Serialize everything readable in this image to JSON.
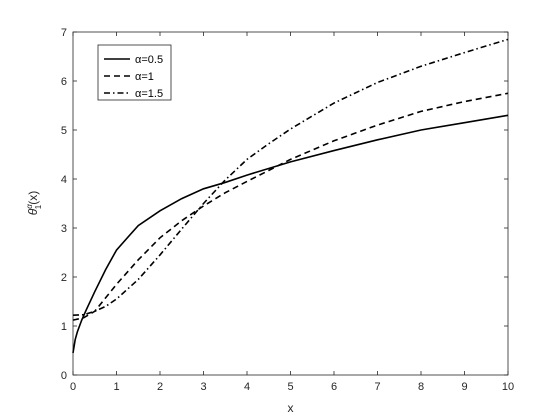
{
  "chart_data": {
    "type": "line",
    "xlabel": "x",
    "ylabel_parts": {
      "base": "θ",
      "superscript": "α",
      "subscript": "1",
      "suffix": "(x)"
    },
    "xlim": [
      0,
      10
    ],
    "ylim": [
      0,
      7
    ],
    "xticks": [
      "0",
      "1",
      "2",
      "3",
      "4",
      "5",
      "6",
      "7",
      "8",
      "9",
      "10"
    ],
    "yticks": [
      "0",
      "1",
      "2",
      "3",
      "4",
      "5",
      "6",
      "7"
    ],
    "grid": false,
    "legend_position": "top-left",
    "colors": {
      "line": "#000000",
      "axis": "#262626",
      "background": "#ffffff"
    },
    "series": [
      {
        "name": "α=0.5",
        "style": "solid",
        "x": [
          0,
          0.05,
          0.1,
          0.2,
          0.3,
          0.5,
          0.75,
          1,
          1.5,
          2,
          2.5,
          3,
          3.5,
          4,
          5,
          6,
          7,
          8,
          9,
          10
        ],
        "y": [
          0.45,
          0.72,
          0.88,
          1.12,
          1.32,
          1.7,
          2.15,
          2.55,
          3.05,
          3.35,
          3.6,
          3.8,
          3.93,
          4.08,
          4.35,
          4.58,
          4.8,
          5.0,
          5.15,
          5.3
        ]
      },
      {
        "name": "α=1",
        "style": "dashed",
        "x": [
          0,
          0.25,
          0.5,
          1,
          1.5,
          2,
          2.5,
          3,
          3.5,
          4,
          5,
          6,
          7,
          8,
          9,
          10
        ],
        "y": [
          1.12,
          1.17,
          1.3,
          1.85,
          2.35,
          2.8,
          3.15,
          3.45,
          3.72,
          3.95,
          4.4,
          4.78,
          5.1,
          5.38,
          5.58,
          5.75
        ]
      },
      {
        "name": "α=1.5",
        "style": "dashdot",
        "x": [
          0,
          0.25,
          0.5,
          0.75,
          1,
          1.5,
          2,
          2.5,
          3,
          3.5,
          4,
          4.5,
          5,
          6,
          7,
          8,
          9,
          10
        ],
        "y": [
          1.22,
          1.23,
          1.3,
          1.4,
          1.55,
          1.95,
          2.45,
          2.98,
          3.5,
          3.98,
          4.4,
          4.72,
          5.02,
          5.55,
          5.97,
          6.3,
          6.58,
          6.85
        ]
      }
    ]
  }
}
